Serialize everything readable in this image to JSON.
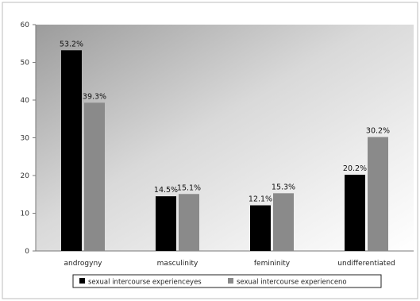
{
  "chart_data": {
    "type": "bar",
    "categories": [
      "androgyny",
      "masculinity",
      "femininity",
      "undifferentiated"
    ],
    "series": [
      {
        "name": "sexual intercourse experienceyes",
        "values": [
          53.2,
          14.5,
          12.1,
          20.2
        ],
        "labels": [
          "53.2%",
          "14.5%",
          "12.1%",
          "20.2%"
        ],
        "color": "#000000"
      },
      {
        "name": "sexual intercourse experienceno",
        "values": [
          39.3,
          15.1,
          15.3,
          30.2
        ],
        "labels": [
          "39.3%",
          "15.1%",
          "15.3%",
          "30.2%"
        ],
        "color": "#8a8a8a"
      }
    ],
    "ylim": [
      0,
      60
    ],
    "yticks": [
      "0",
      "10",
      "20",
      "30",
      "40",
      "50",
      "60"
    ],
    "legend_position": "bottom",
    "grid": false
  }
}
